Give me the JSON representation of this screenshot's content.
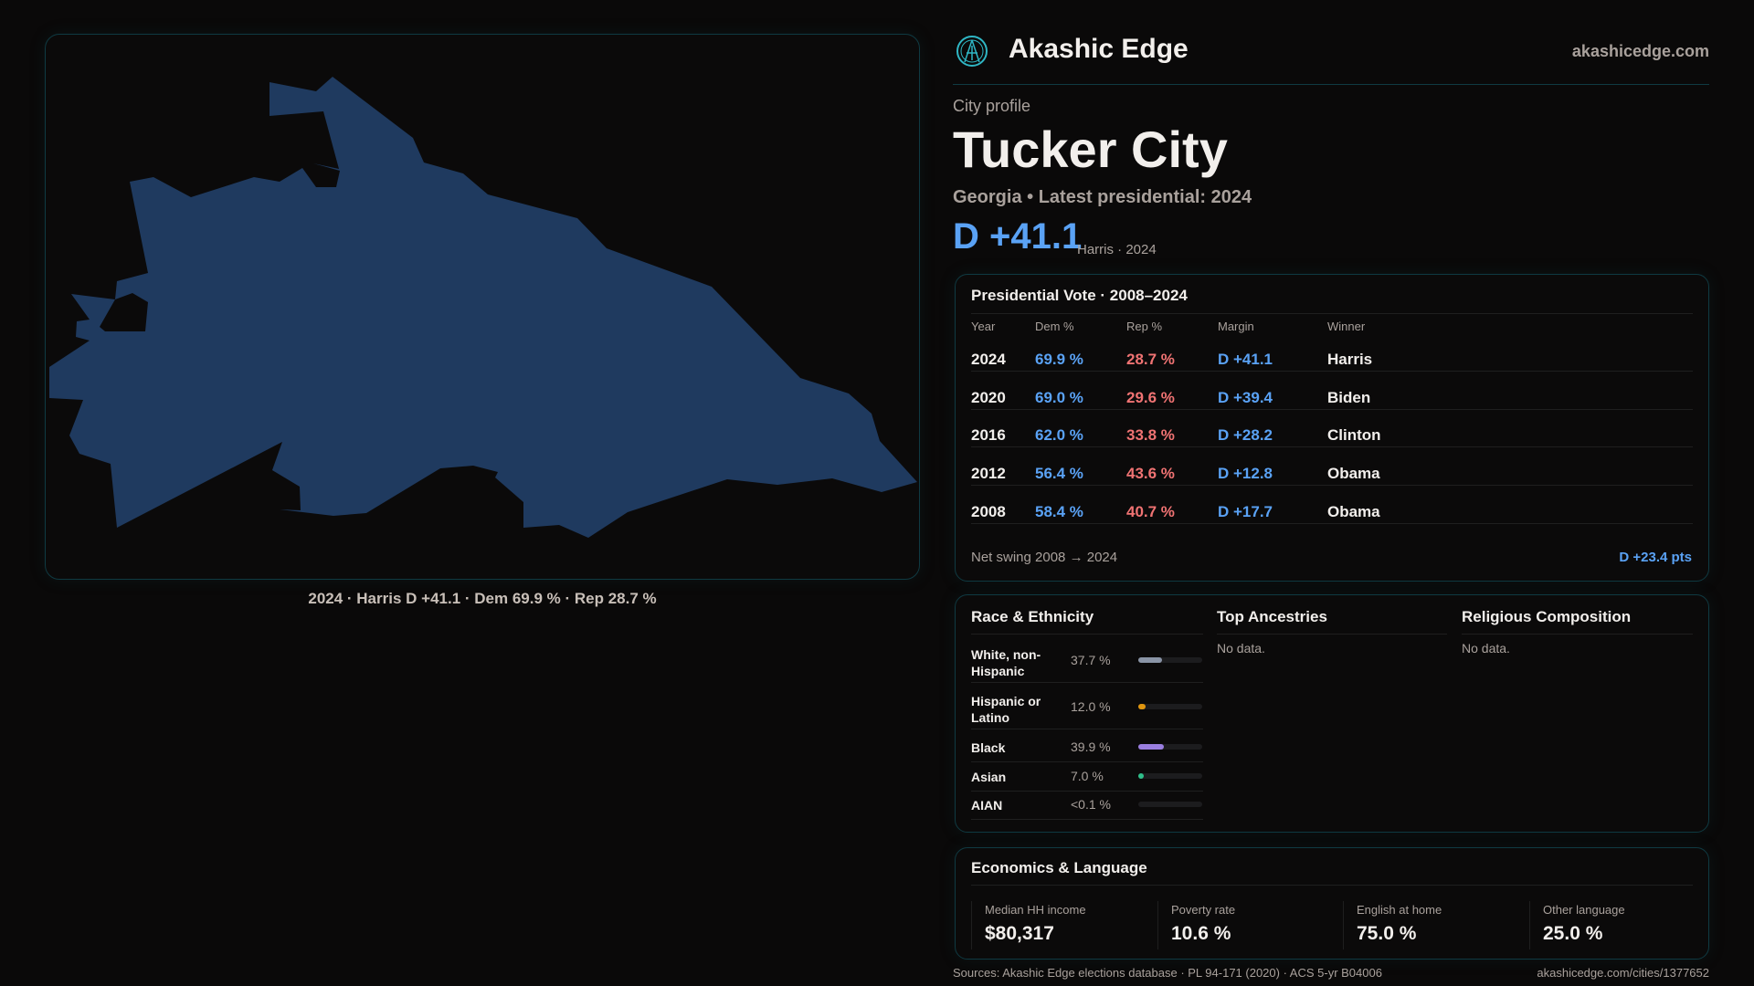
{
  "brand": {
    "name": "Akashic Edge",
    "site": "akashicedge.com",
    "logo_icon": "akashic-edge-logo-icon"
  },
  "profile": {
    "kicker": "City profile",
    "title": "Tucker City",
    "subtitle": "Georgia • Latest presidential: 2024",
    "margin": "D +41.1",
    "margin_note": "Harris · 2024"
  },
  "map": {
    "caption": "2024 · Harris D +41.1 · Dem 69.9 % · Rep 28.7 %",
    "fill": "#1f3a5f"
  },
  "presidential": {
    "title": "Presidential Vote · 2008–2024",
    "headers": [
      "Year",
      "Dem %",
      "Rep %",
      "Margin",
      "Winner"
    ],
    "rows": [
      [
        "2024",
        "69.9 %",
        "28.7 %",
        "D +41.1",
        "Harris"
      ],
      [
        "2020",
        "69.0 %",
        "29.6 %",
        "D +39.4",
        "Biden"
      ],
      [
        "2016",
        "62.0 %",
        "33.8 %",
        "D +28.2",
        "Clinton"
      ],
      [
        "2012",
        "56.4 %",
        "43.6 %",
        "D +12.8",
        "Obama"
      ],
      [
        "2008",
        "58.4 %",
        "40.7 %",
        "D +17.7",
        "Obama"
      ]
    ],
    "swing_label": "Net swing 2008 → 2024",
    "swing_value": "D +23.4 pts"
  },
  "race": {
    "title": "Race & Ethnicity",
    "rows": [
      {
        "label": "White, non-Hispanic",
        "value": "37.7 %",
        "pct": 37.7,
        "color": "#8a94a6"
      },
      {
        "label": "Hispanic or Latino",
        "value": "12.0 %",
        "pct": 12.0,
        "color": "#e0960f"
      },
      {
        "label": "Black",
        "value": "39.9 %",
        "pct": 39.9,
        "color": "#9a7ee0"
      },
      {
        "label": "Asian",
        "value": "7.0 %",
        "pct": 7.0,
        "color": "#2fbf8a"
      },
      {
        "label": "AIAN",
        "value": "<0.1 %",
        "pct": 0.05,
        "color": "#555"
      }
    ]
  },
  "ancestries": {
    "title": "Top Ancestries",
    "empty": "No data."
  },
  "religion": {
    "title": "Religious Composition",
    "empty": "No data."
  },
  "economics": {
    "title": "Economics & Language",
    "stats": [
      {
        "label": "Median HH income",
        "value": "$80,317"
      },
      {
        "label": "Poverty rate",
        "value": "10.6 %"
      },
      {
        "label": "English at home",
        "value": "75.0 %"
      },
      {
        "label": "Other language",
        "value": "25.0 %"
      }
    ]
  },
  "footer": {
    "sources": "Sources: Akashic Edge elections database · PL 94-171 (2020) · ACS 5-yr B04006",
    "url": "akashicedge.com/cities/1377652"
  }
}
